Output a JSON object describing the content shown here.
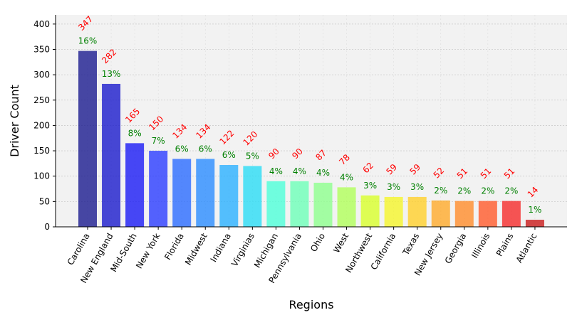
{
  "chart_data": {
    "type": "bar",
    "xlabel": "Regions",
    "ylabel": "Driver Count",
    "ylim": [
      0,
      418
    ],
    "yticks": [
      0,
      50,
      100,
      150,
      200,
      250,
      300,
      350,
      400
    ],
    "grid": true,
    "categories": [
      "Carolina",
      "New England",
      "Mid-South",
      "New York",
      "Florida",
      "Midwest",
      "Indiana",
      "Virginias",
      "Michigan",
      "Pennsylvania",
      "Ohio",
      "West",
      "Northwest",
      "California",
      "Texas",
      "New Jersey",
      "Georgia",
      "Illinois",
      "Plains",
      "Atlantic"
    ],
    "values": [
      347,
      282,
      165,
      150,
      134,
      134,
      122,
      120,
      90,
      90,
      87,
      78,
      62,
      59,
      59,
      52,
      51,
      51,
      51,
      14
    ],
    "percent_labels": [
      "16%",
      "13%",
      "8%",
      "7%",
      "6%",
      "6%",
      "6%",
      "5%",
      "4%",
      "4%",
      "4%",
      "4%",
      "3%",
      "3%",
      "3%",
      "2%",
      "2%",
      "2%",
      "2%",
      "1%"
    ],
    "bar_colors": [
      "#1a1a8f",
      "#1a1acc",
      "#1a1af5",
      "#2a3cff",
      "#2a6cff",
      "#2a8cff",
      "#2ab0ff",
      "#2adcf5",
      "#4dffd8",
      "#6dffb8",
      "#8dff8d",
      "#b0ff5a",
      "#d8ff2a",
      "#f5f52a",
      "#ffd02a",
      "#ffaa2a",
      "#ff8c2a",
      "#ff5a2a",
      "#f52a2a",
      "#c81a1a"
    ],
    "value_label_color": "#ff0000",
    "percent_label_color": "#008000",
    "plot_background": "#f2f2f2"
  }
}
